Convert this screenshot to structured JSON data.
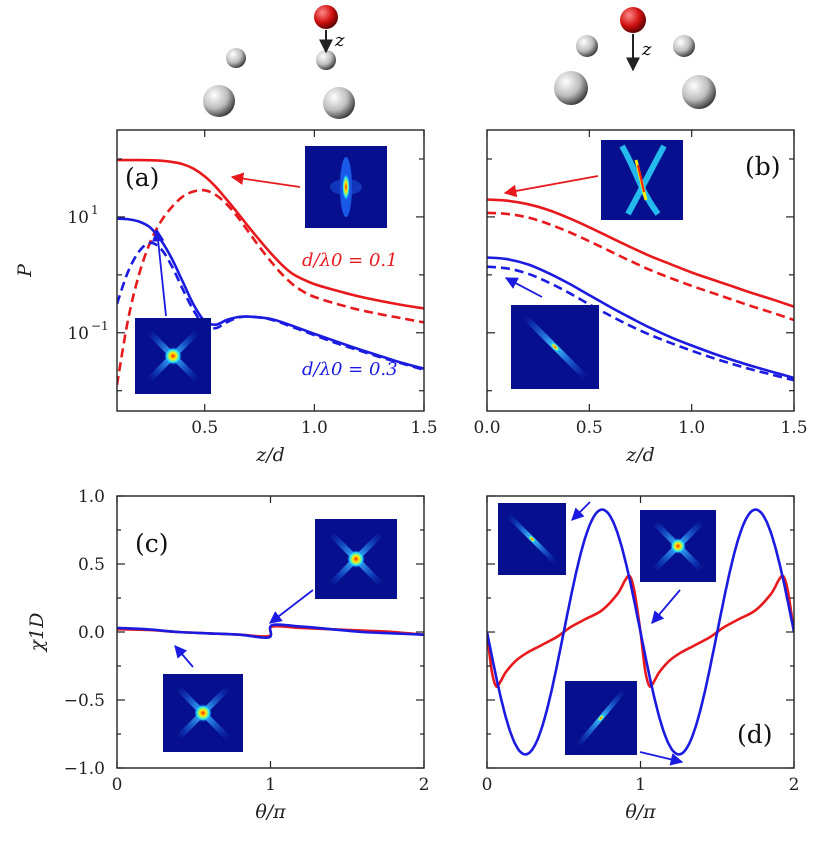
{
  "colors": {
    "red": "#e8191d",
    "blue": "#1a1ae0",
    "inset_bg": "#06108e"
  },
  "schematics": [
    {
      "panel": "left",
      "axis_label": "z",
      "icon": "atom-array-square-icon"
    },
    {
      "panel": "right",
      "axis_label": "z",
      "icon": "atom-array-pentagon-icon"
    }
  ],
  "chart_data": [
    {
      "panel": "a",
      "letter": "(a)",
      "type": "line",
      "xlabel": "z/d",
      "ylabel": "P",
      "xlim": [
        0.1,
        1.5
      ],
      "ylim_log10": [
        -2.35,
        2.5
      ],
      "yscale": "log",
      "xticks": [
        0.5,
        1.0,
        1.5
      ],
      "xtick_labels": [
        "0.5",
        "1.0",
        "1.5"
      ],
      "yticks_log10": [
        1,
        -1
      ],
      "ytick_labels": [
        "10",
        "10"
      ],
      "ytick_exponents": [
        "1",
        "−1"
      ],
      "annotations": [
        "d/λ0 = 0.1",
        "d/λ0 = 0.3"
      ],
      "series": [
        {
          "color": "red",
          "dash": "solid",
          "x": [
            0.1,
            0.2,
            0.3,
            0.35,
            0.4,
            0.45,
            0.5,
            0.55,
            0.6,
            0.65,
            0.7,
            0.75,
            0.8,
            0.85,
            0.9,
            0.95,
            1.0,
            1.1,
            1.2,
            1.3,
            1.4,
            1.5
          ],
          "log10y": [
            1.98,
            1.98,
            1.97,
            1.95,
            1.91,
            1.83,
            1.7,
            1.52,
            1.3,
            1.07,
            0.83,
            0.6,
            0.38,
            0.18,
            0.02,
            -0.08,
            -0.16,
            -0.27,
            -0.37,
            -0.45,
            -0.52,
            -0.58
          ]
        },
        {
          "color": "red",
          "dash": "dashed",
          "x": [
            0.1,
            0.15,
            0.2,
            0.25,
            0.3,
            0.35,
            0.4,
            0.45,
            0.5,
            0.55,
            0.6,
            0.65,
            0.7,
            0.75,
            0.8,
            0.85,
            0.9,
            0.95,
            1.0,
            1.1,
            1.2,
            1.3,
            1.4,
            1.5
          ],
          "log10y": [
            -1.9,
            -0.78,
            0.0,
            0.55,
            0.92,
            1.17,
            1.35,
            1.44,
            1.46,
            1.38,
            1.22,
            1.0,
            0.74,
            0.48,
            0.24,
            0.02,
            -0.16,
            -0.29,
            -0.38,
            -0.5,
            -0.6,
            -0.68,
            -0.75,
            -0.82
          ]
        },
        {
          "color": "blue",
          "dash": "solid",
          "x": [
            0.1,
            0.15,
            0.2,
            0.25,
            0.3,
            0.35,
            0.4,
            0.45,
            0.5,
            0.55,
            0.6,
            0.65,
            0.7,
            0.8,
            0.9,
            1.0,
            1.1,
            1.2,
            1.3,
            1.4,
            1.5
          ],
          "log10y": [
            0.97,
            0.96,
            0.92,
            0.82,
            0.6,
            0.28,
            -0.12,
            -0.52,
            -0.8,
            -0.86,
            -0.78,
            -0.73,
            -0.72,
            -0.76,
            -0.88,
            -1.02,
            -1.15,
            -1.28,
            -1.4,
            -1.52,
            -1.62
          ]
        },
        {
          "color": "blue",
          "dash": "dashed",
          "x": [
            0.1,
            0.15,
            0.2,
            0.25,
            0.3,
            0.35,
            0.4,
            0.45,
            0.5,
            0.55,
            0.6,
            0.65,
            0.7,
            0.8,
            0.9,
            1.0,
            1.1,
            1.2,
            1.3,
            1.4,
            1.5
          ],
          "log10y": [
            -0.5,
            0.05,
            0.4,
            0.55,
            0.45,
            0.15,
            -0.25,
            -0.62,
            -0.88,
            -0.92,
            -0.82,
            -0.74,
            -0.72,
            -0.77,
            -0.9,
            -1.04,
            -1.18,
            -1.3,
            -1.42,
            -1.53,
            -1.64
          ]
        }
      ]
    },
    {
      "panel": "b",
      "letter": "(b)",
      "type": "line",
      "xlabel": "z/d",
      "ylabel": "",
      "xlim": [
        0.0,
        1.5
      ],
      "ylim_log10": [
        -2.35,
        2.5
      ],
      "yscale": "log",
      "xticks": [
        0.0,
        0.5,
        1.0,
        1.5
      ],
      "xtick_labels": [
        "0.0",
        "0.5",
        "1.0",
        "1.5"
      ],
      "series": [
        {
          "color": "red",
          "dash": "solid",
          "x": [
            0.0,
            0.1,
            0.2,
            0.3,
            0.4,
            0.5,
            0.6,
            0.7,
            0.8,
            0.9,
            1.0,
            1.1,
            1.2,
            1.3,
            1.4,
            1.5
          ],
          "log10y": [
            1.3,
            1.28,
            1.22,
            1.12,
            0.98,
            0.82,
            0.65,
            0.48,
            0.32,
            0.18,
            0.04,
            -0.08,
            -0.2,
            -0.32,
            -0.43,
            -0.55
          ]
        },
        {
          "color": "red",
          "dash": "dashed",
          "x": [
            0.0,
            0.1,
            0.2,
            0.3,
            0.4,
            0.5,
            0.6,
            0.7,
            0.8,
            0.9,
            1.0,
            1.1,
            1.2,
            1.3,
            1.4,
            1.5
          ],
          "log10y": [
            1.07,
            1.05,
            0.99,
            0.88,
            0.74,
            0.58,
            0.41,
            0.24,
            0.08,
            -0.06,
            -0.19,
            -0.31,
            -0.43,
            -0.55,
            -0.66,
            -0.78
          ]
        },
        {
          "color": "blue",
          "dash": "solid",
          "x": [
            0.0,
            0.1,
            0.2,
            0.3,
            0.4,
            0.5,
            0.6,
            0.7,
            0.8,
            0.9,
            1.0,
            1.1,
            1.2,
            1.3,
            1.4,
            1.5
          ],
          "log10y": [
            0.3,
            0.27,
            0.18,
            0.03,
            -0.15,
            -0.35,
            -0.55,
            -0.74,
            -0.92,
            -1.08,
            -1.22,
            -1.35,
            -1.47,
            -1.58,
            -1.68,
            -1.78
          ]
        },
        {
          "color": "blue",
          "dash": "dashed",
          "x": [
            0.0,
            0.1,
            0.2,
            0.3,
            0.4,
            0.5,
            0.6,
            0.7,
            0.8,
            0.9,
            1.0,
            1.1,
            1.2,
            1.3,
            1.4,
            1.5
          ],
          "log10y": [
            0.14,
            0.11,
            0.02,
            -0.13,
            -0.31,
            -0.51,
            -0.7,
            -0.88,
            -1.04,
            -1.18,
            -1.31,
            -1.43,
            -1.54,
            -1.64,
            -1.73,
            -1.82
          ]
        }
      ]
    },
    {
      "panel": "c",
      "letter": "(c)",
      "type": "line",
      "xlabel": "θ/π",
      "ylabel": "χ1D",
      "xlim": [
        0,
        2
      ],
      "ylim": [
        -1.0,
        1.0
      ],
      "xticks": [
        0,
        1,
        2
      ],
      "xtick_labels": [
        "0",
        "1",
        "2"
      ],
      "yticks": [
        1.0,
        0.5,
        0.0,
        -0.5,
        -1.0
      ],
      "ytick_labels": [
        "1.0",
        "0.5",
        "0.0",
        "−0.5",
        "−1.0"
      ],
      "series": [
        {
          "color": "red",
          "dash": "solid",
          "x": [
            0.0,
            0.2,
            0.4,
            0.6,
            0.8,
            0.99,
            1.01,
            1.2,
            1.4,
            1.6,
            1.8,
            2.0
          ],
          "y": [
            0.02,
            0.015,
            0.0,
            -0.01,
            -0.02,
            -0.03,
            0.04,
            0.03,
            0.02,
            0.01,
            0.0,
            -0.02
          ]
        },
        {
          "color": "blue",
          "dash": "solid",
          "x": [
            0.0,
            0.2,
            0.4,
            0.6,
            0.8,
            0.99,
            1.01,
            1.2,
            1.4,
            1.6,
            1.8,
            2.0
          ],
          "y": [
            0.03,
            0.02,
            0.0,
            -0.01,
            -0.02,
            -0.04,
            0.05,
            0.04,
            0.02,
            0.0,
            -0.01,
            -0.02
          ]
        }
      ]
    },
    {
      "panel": "d",
      "letter": "(d)",
      "type": "line",
      "xlabel": "θ/π",
      "ylabel": "",
      "xlim": [
        0,
        2
      ],
      "ylim": [
        -1.0,
        1.0
      ],
      "xticks": [
        0,
        1,
        2
      ],
      "xtick_labels": [
        "0",
        "1",
        "2"
      ],
      "series": [
        {
          "color": "red",
          "dash": "solid",
          "x": [
            0.0,
            0.03,
            0.06,
            0.09,
            0.12,
            0.18,
            0.25,
            0.35,
            0.45,
            0.5,
            0.55,
            0.65,
            0.75,
            0.85,
            0.9,
            0.93,
            0.96,
            1.0,
            1.03,
            1.06,
            1.09,
            1.12,
            1.18,
            1.25,
            1.35,
            1.45,
            1.5,
            1.55,
            1.65,
            1.75,
            1.85,
            1.9,
            1.93,
            1.96,
            2.0
          ],
          "y": [
            0.0,
            -0.28,
            -0.4,
            -0.36,
            -0.3,
            -0.22,
            -0.16,
            -0.1,
            -0.04,
            0.0,
            0.04,
            0.1,
            0.16,
            0.28,
            0.38,
            0.41,
            0.3,
            0.0,
            -0.28,
            -0.4,
            -0.36,
            -0.3,
            -0.22,
            -0.16,
            -0.1,
            -0.04,
            0.0,
            0.04,
            0.1,
            0.16,
            0.28,
            0.38,
            0.41,
            0.3,
            0.0
          ]
        },
        {
          "color": "blue",
          "dash": "solid",
          "sine": {
            "amplitude": 0.9,
            "period": 1.0,
            "phase": 0.5
          }
        }
      ]
    }
  ]
}
